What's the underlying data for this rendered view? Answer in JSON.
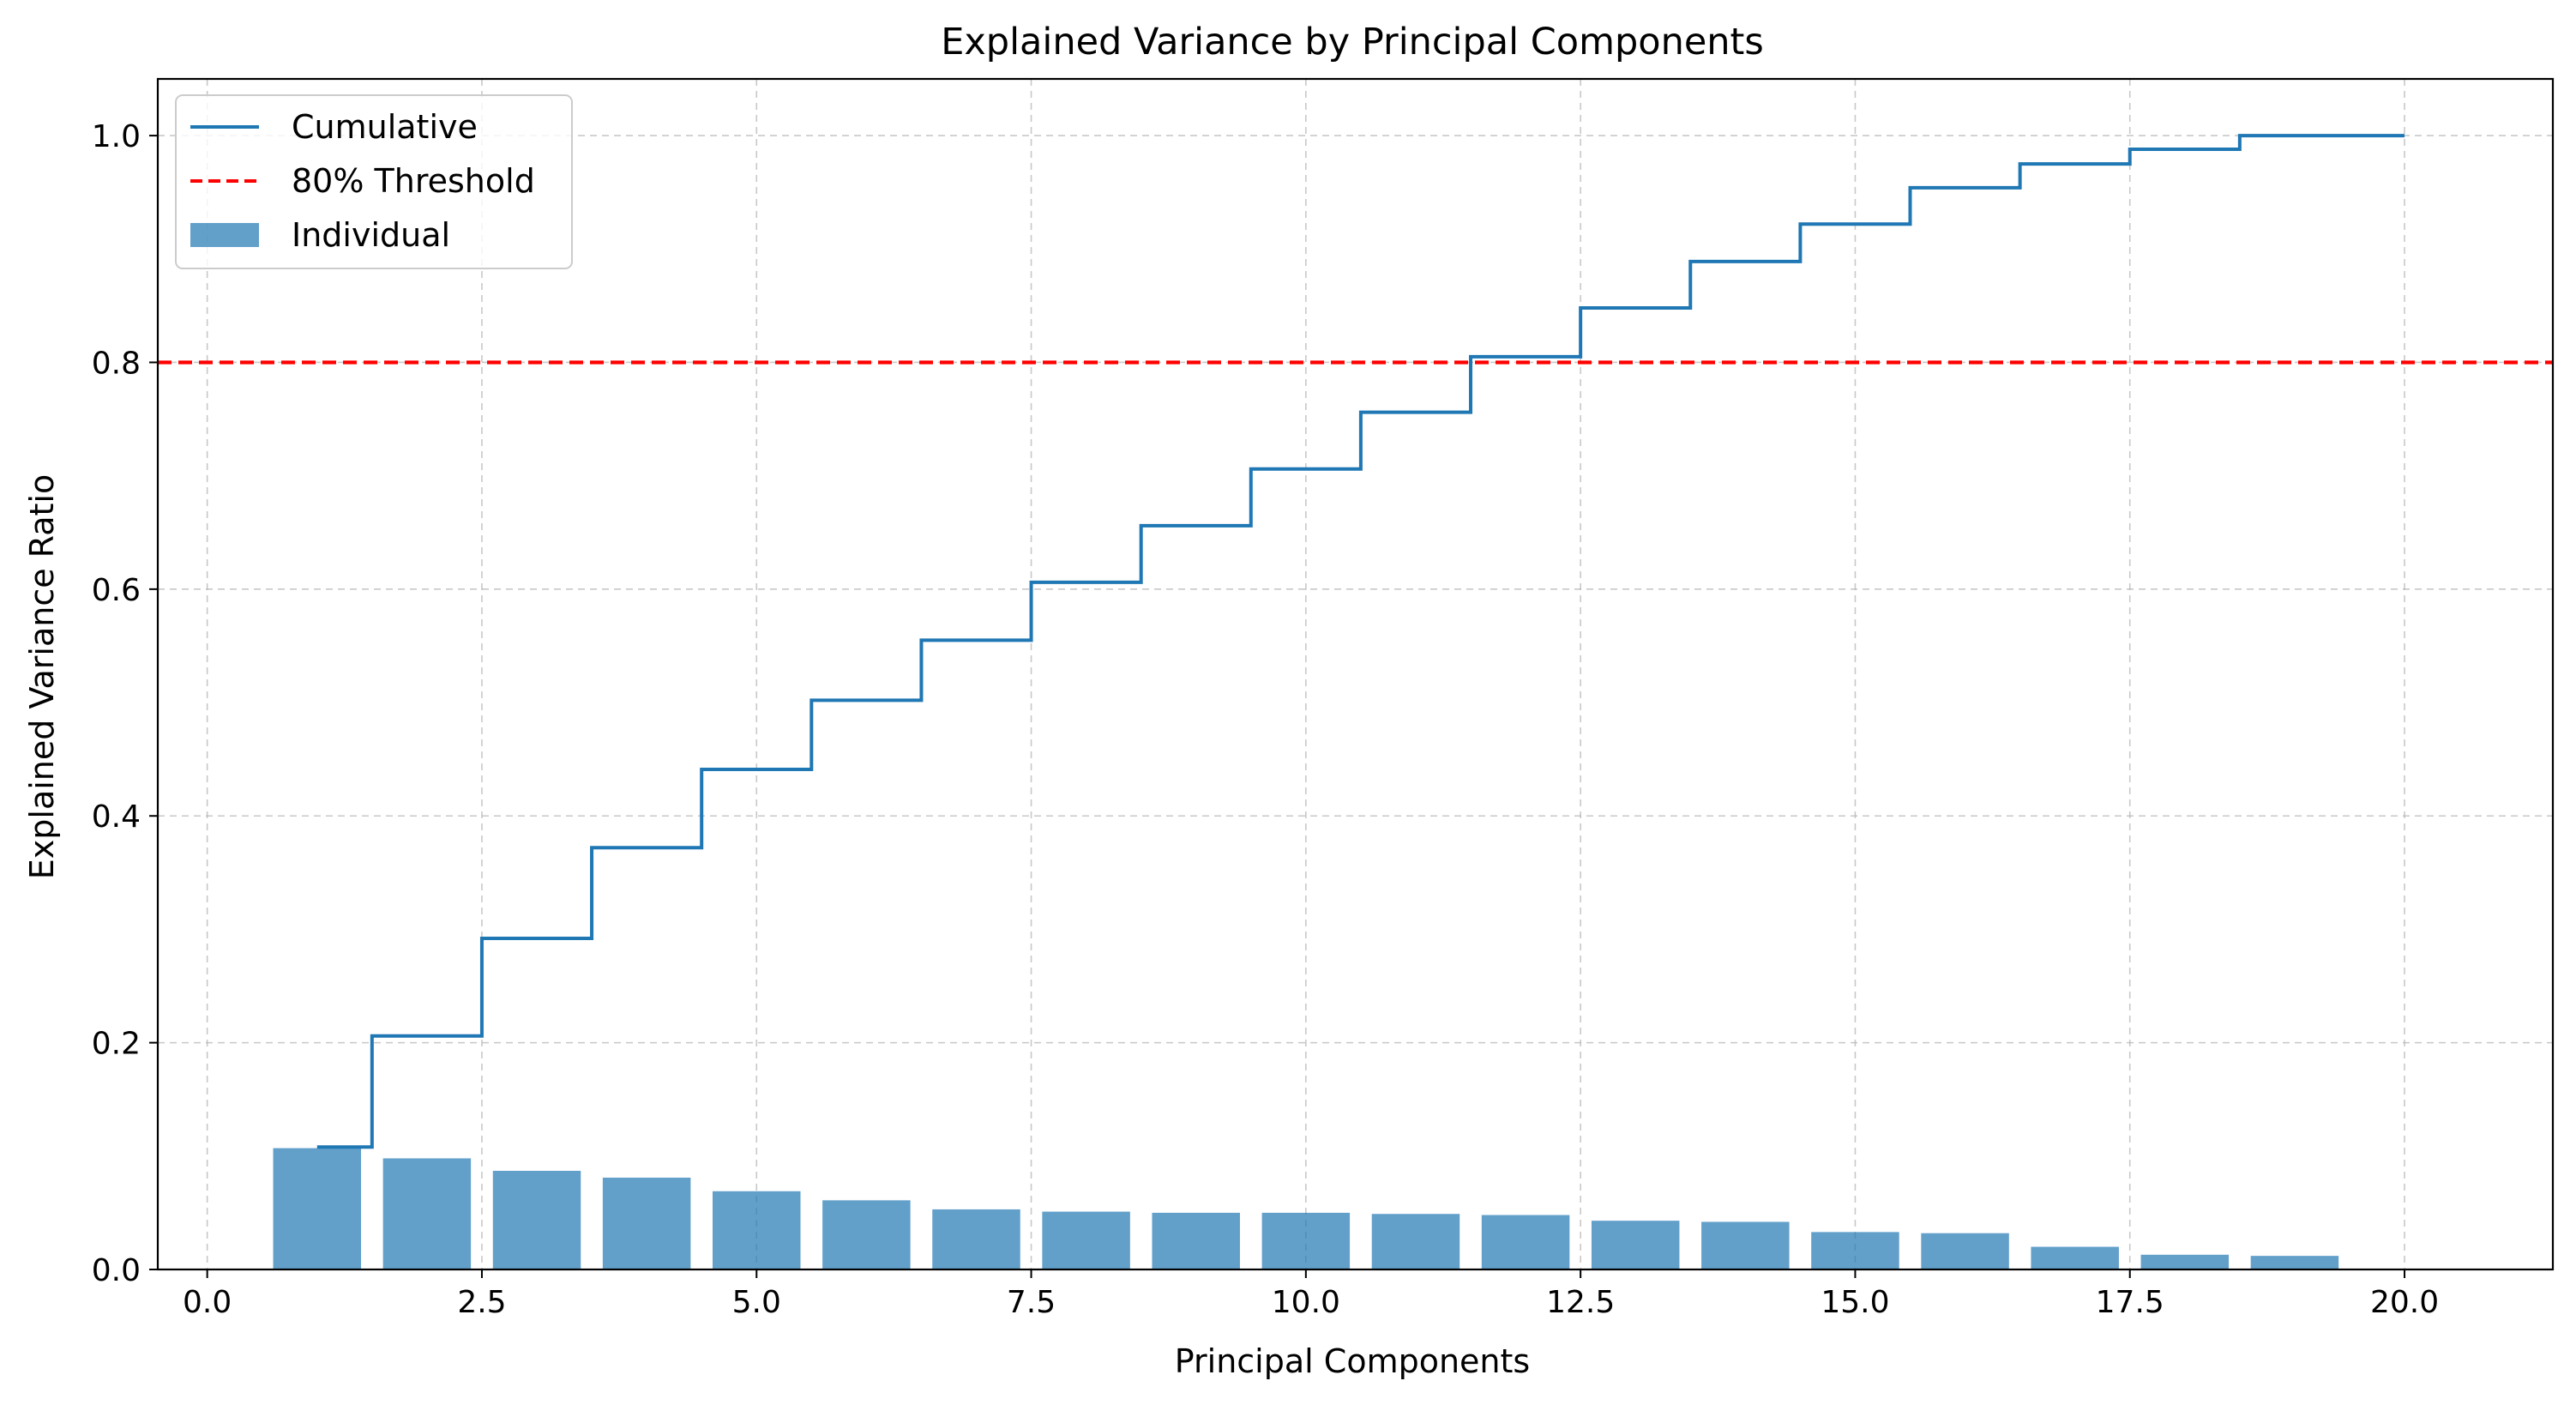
{
  "chart_data": {
    "type": "bar",
    "title": "Explained Variance by Principal Components",
    "xlabel": "Principal Components",
    "ylabel": "Explained Variance Ratio",
    "xlim": [
      -0.45,
      21.35
    ],
    "ylim": [
      0.0,
      1.05
    ],
    "x_ticks": [
      0.0,
      2.5,
      5.0,
      7.5,
      10.0,
      12.5,
      15.0,
      17.5,
      20.0
    ],
    "x_tick_labels": [
      "0.0",
      "2.5",
      "5.0",
      "7.5",
      "10.0",
      "12.5",
      "15.0",
      "17.5",
      "20.0"
    ],
    "y_ticks": [
      0.0,
      0.2,
      0.4,
      0.6,
      0.8,
      1.0
    ],
    "y_tick_labels": [
      "0.0",
      "0.2",
      "0.4",
      "0.6",
      "0.8",
      "1.0"
    ],
    "grid": true,
    "legend_position": "top-left",
    "x": [
      1,
      2,
      3,
      4,
      5,
      6,
      7,
      8,
      9,
      10,
      11,
      12,
      13,
      14,
      15,
      16,
      17,
      18,
      19,
      20
    ],
    "series": [
      {
        "name": "Cumulative",
        "type": "step",
        "color": "#1f77b4",
        "values": [
          0.108,
          0.206,
          0.292,
          0.372,
          0.441,
          0.502,
          0.555,
          0.606,
          0.656,
          0.706,
          0.756,
          0.805,
          0.848,
          0.889,
          0.922,
          0.954,
          0.975,
          0.988,
          1.0,
          1.0
        ]
      },
      {
        "name": "80% Threshold",
        "type": "hline",
        "color": "#ff0000",
        "value": 0.8
      },
      {
        "name": "Individual",
        "type": "bar",
        "color": "#1f77b4",
        "opacity": 0.7,
        "values": [
          0.107,
          0.098,
          0.087,
          0.081,
          0.069,
          0.061,
          0.053,
          0.051,
          0.05,
          0.05,
          0.049,
          0.048,
          0.043,
          0.042,
          0.033,
          0.032,
          0.02,
          0.013,
          0.012,
          0.0
        ]
      }
    ]
  }
}
